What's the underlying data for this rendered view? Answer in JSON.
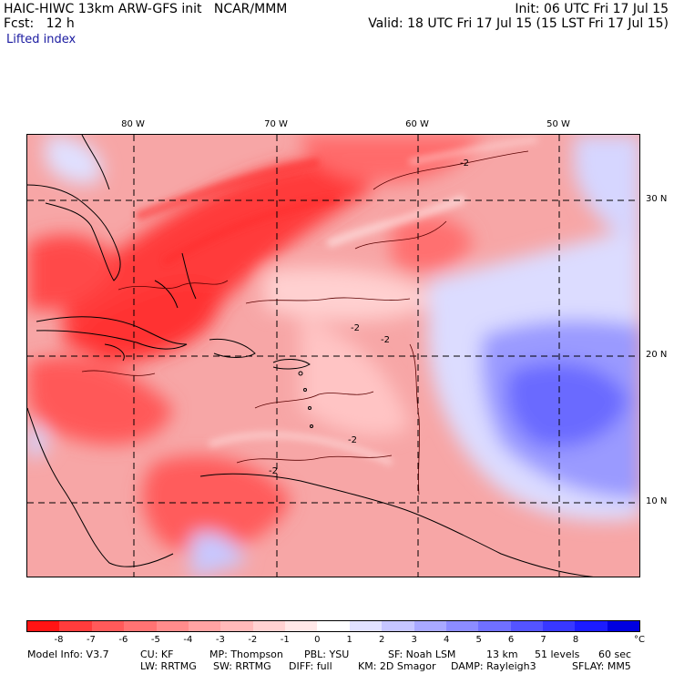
{
  "header": {
    "model_line": "HAIC-HIWC 13km ARW-GFS init   NCAR/MMM",
    "init_line": "Init: 06 UTC Fri 17 Jul 15",
    "fcst_line": "Fcst:   12 h",
    "valid_line": "Valid: 18 UTC Fri 17 Jul 15 (15 LST Fri 17 Jul 15)",
    "field_name": "Lifted index"
  },
  "map": {
    "lon_labels": [
      "80 W",
      "70 W",
      "60 W",
      "50 W"
    ],
    "lat_labels": [
      "30 N",
      "20 N",
      "10 N"
    ],
    "contour_label": "-2"
  },
  "colorbar": {
    "unit": "°C",
    "tick_labels": [
      "-8",
      "-7",
      "-6",
      "-5",
      "-4",
      "-3",
      "-2",
      "-1",
      "0",
      "1",
      "2",
      "3",
      "4",
      "5",
      "6",
      "7",
      "8"
    ],
    "colors": [
      "#ff1414",
      "#ff3c3c",
      "#ff5a5a",
      "#ff7373",
      "#ff8c8c",
      "#ffa3a3",
      "#ffbaba",
      "#ffd2d2",
      "#ffe8e8",
      "#ffffff",
      "#e2e2ff",
      "#c6c6ff",
      "#a9a9ff",
      "#8c8cff",
      "#7070ff",
      "#5454ff",
      "#3838ff",
      "#1c1cff",
      "#0000e0"
    ]
  },
  "footer": {
    "line1_cols": [
      "Model Info: V3.7",
      "CU: KF",
      "MP: Thompson",
      "PBL: YSU",
      "SF: Noah LSM",
      "13 km",
      "51 levels",
      "60 sec"
    ],
    "line2_cols": [
      "LW: RRTMG",
      "SW: RRTMG",
      "DIFF: full",
      "KM: 2D Smagor",
      "DAMP: Rayleigh3",
      "SFLAY: MM5"
    ]
  }
}
